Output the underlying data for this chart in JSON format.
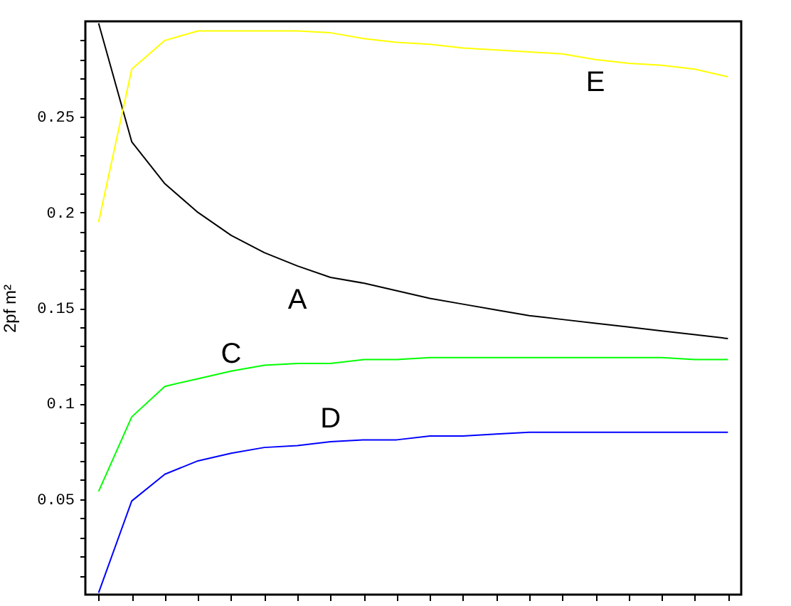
{
  "chart_data": {
    "type": "line",
    "ylabel": "2pf m²",
    "categories": [
      null,
      null,
      null,
      null,
      null,
      null,
      null,
      null,
      null,
      null,
      null,
      null,
      null,
      null,
      null,
      null,
      null,
      null,
      null,
      null
    ],
    "series": [
      {
        "name": "A",
        "color": "#000000",
        "values": [
          0.299,
          0.237,
          0.215,
          0.2,
          0.188,
          0.179,
          0.172,
          0.166,
          0.163,
          0.159,
          0.155,
          0.152,
          0.149,
          0.146,
          0.144,
          0.142,
          0.14,
          0.138,
          0.136,
          0.134
        ]
      },
      {
        "name": "C",
        "color": "#00ff00",
        "values": [
          0.054,
          0.093,
          0.109,
          0.113,
          0.117,
          0.12,
          0.121,
          0.121,
          0.123,
          0.123,
          0.124,
          0.124,
          0.124,
          0.124,
          0.124,
          0.124,
          0.124,
          0.124,
          0.123,
          0.123
        ]
      },
      {
        "name": "D",
        "color": "#0000ff",
        "values": [
          0.001,
          0.049,
          0.063,
          0.07,
          0.074,
          0.077,
          0.078,
          0.08,
          0.081,
          0.081,
          0.083,
          0.083,
          0.084,
          0.085,
          0.085,
          0.085,
          0.085,
          0.085,
          0.085,
          0.085
        ]
      },
      {
        "name": "E",
        "color": "#ffff00",
        "values": [
          0.195,
          0.275,
          0.29,
          0.295,
          0.295,
          0.295,
          0.295,
          0.294,
          0.291,
          0.289,
          0.288,
          0.286,
          0.285,
          0.284,
          0.283,
          0.28,
          0.278,
          0.277,
          0.275,
          0.271
        ]
      }
    ],
    "ylim": [
      0,
      0.3
    ],
    "yticks": [
      {
        "value": 0.01,
        "label": null
      },
      {
        "value": 0.02,
        "label": null
      },
      {
        "value": 0.03,
        "label": null
      },
      {
        "value": 0.04,
        "label": null
      },
      0.05,
      {
        "value": 0.06,
        "label": null
      },
      {
        "value": 0.07,
        "label": null
      },
      {
        "value": 0.08,
        "label": null
      },
      {
        "value": 0.09,
        "label": null
      },
      0.1,
      {
        "value": 0.11,
        "label": null
      },
      {
        "value": 0.12,
        "label": null
      },
      {
        "value": 0.13,
        "label": null
      },
      {
        "value": 0.14,
        "label": null
      },
      0.15,
      {
        "value": 0.16,
        "label": null
      },
      {
        "value": 0.17,
        "label": null
      },
      {
        "value": 0.18,
        "label": null
      },
      {
        "value": 0.19,
        "label": null
      },
      0.2,
      {
        "value": 0.21,
        "label": null
      },
      {
        "value": 0.22,
        "label": null
      },
      {
        "value": 0.23,
        "label": null
      },
      {
        "value": 0.24,
        "label": null
      },
      0.25,
      {
        "value": 0.26,
        "label": null
      },
      {
        "value": 0.27,
        "label": null
      },
      {
        "value": 0.28,
        "label": null
      },
      {
        "value": 0.29,
        "label": null
      }
    ],
    "grid": false,
    "legend": false,
    "marker": "none",
    "line_style": "solid"
  }
}
